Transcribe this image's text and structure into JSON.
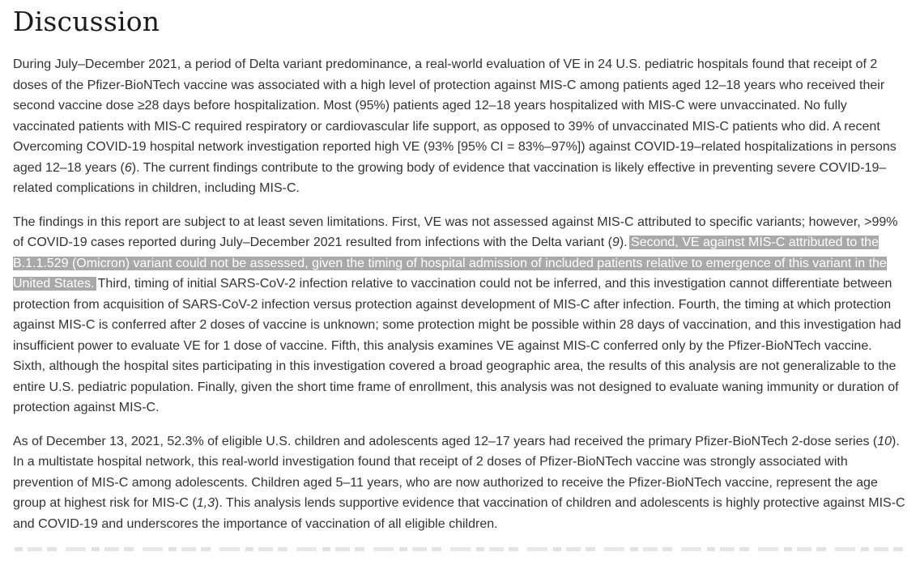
{
  "article": {
    "heading": "Discussion",
    "paragraphs": [
      {
        "segments": [
          {
            "style": "normal",
            "text": "During July–December 2021, a period of Delta variant predominance, a real-world evaluation of VE in 24 U.S. pediatric hospitals found that receipt of 2 doses of the Pfizer-BioNTech vaccine was associated with a high level of protection against MIS-C among patients aged 12–18 years who received their second vaccine dose ≥28 days before hospitalization. Most (95%) patients aged 12–18 years hospitalized with MIS-C were unvaccinated. No fully vaccinated patients with MIS-C required respiratory or cardiovascular life support, as opposed to 39% of unvaccinated MIS-C patients who did. A recent Overcoming COVID-19 hospital network investigation reported high VE (93% [95% CI = 83%–97%]) against COVID-19–related hospitalizations in persons aged 12–18 years ("
          },
          {
            "style": "italic",
            "text": "6"
          },
          {
            "style": "normal",
            "text": "). The current findings contribute to the growing body of evidence that vaccination is likely effective in preventing severe COVID-19–related complications in children, including MIS-C."
          }
        ]
      },
      {
        "segments": [
          {
            "style": "normal",
            "text": "The findings in this report are subject to at least seven limitations. First, VE was not assessed against MIS-C attributed to specific variants; however, >99% of COVID-19 cases reported during July–December 2021 resulted from infections with the Delta variant ("
          },
          {
            "style": "italic",
            "text": "9"
          },
          {
            "style": "normal",
            "text": "). "
          },
          {
            "style": "highlight",
            "text": "Second, VE against MIS-C attributed to the B.1.1.529 (Omicron) variant could not be assessed, given the timing of hospital admission of included patients relative to emergence of this variant in the United States."
          },
          {
            "style": "normal",
            "text": " Third, timing of initial SARS-CoV-2 infection relative to vaccination could not be inferred, and this investigation cannot differentiate between protection from acquisition of SARS-CoV-2 infection versus protection against development of MIS-C after infection. Fourth, the timing at which protection against MIS-C is conferred after 2 doses of vaccine is unknown; some protection might be possible within 28 days of vaccination, and this investigation had insufficient power to evaluate VE for 1 dose of vaccine. Fifth, this analysis examines VE against MIS-C conferred only by the Pfizer-BioNTech vaccine. Sixth, although the hospital sites participating in this investigation covered a broad geographic area, the results of this analysis are not generalizable to the entire U.S. pediatric population. Finally, given the short time frame of enrollment, this analysis was not designed to evaluate waning immunity or duration of protection against MIS-C."
          }
        ]
      },
      {
        "segments": [
          {
            "style": "normal",
            "text": "As of December 13, 2021, 52.3% of eligible U.S. children and adolescents aged 12–17 years had received the primary Pfizer-BioNTech 2-dose series ("
          },
          {
            "style": "italic",
            "text": "10"
          },
          {
            "style": "normal",
            "text": "). In a multistate hospital network, this real-world investigation found that receipt of 2 doses of Pfizer-BioNTech vaccine was strongly associated with prevention of MIS-C among adolescents. Children aged 5–11 years, who are now authorized to receive the Pfizer-BioNTech vaccine, represent the age group at highest risk for MIS-C ("
          },
          {
            "style": "italic",
            "text": "1,3"
          },
          {
            "style": "normal",
            "text": "). This analysis lends supportive evidence that vaccination of children and adolescents is highly protective against MIS-C and COVID-19 and underscores the importance of vaccination of all eligible children."
          }
        ]
      }
    ],
    "selection": {
      "highlighted_text": "Second, VE against MIS-C attributed to the B.1.1.529 (Omicron) variant could not be assessed, given the timing of hospital admission of included patients relative to emergence of this variant in the United States."
    }
  },
  "colors": {
    "background": "#ffffff",
    "heading_text": "#1b1b1b",
    "body_text": "#333333",
    "selection_bg": "#a9a9a9",
    "selection_text": "#ffffff"
  }
}
